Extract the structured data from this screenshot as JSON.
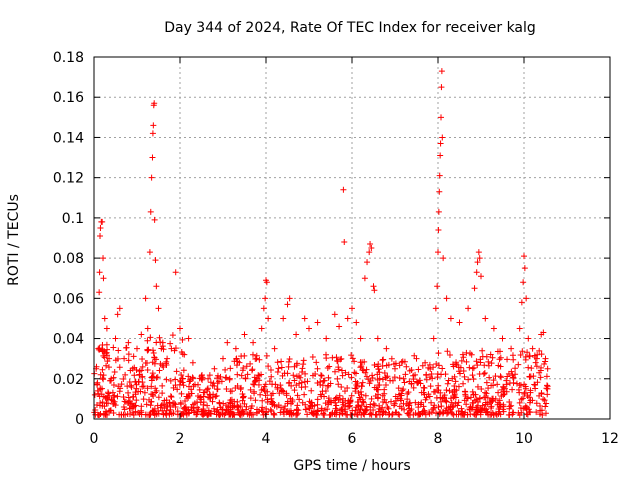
{
  "chart_data": {
    "type": "scatter",
    "title": "Day 344 of 2024, Rate Of TEC Index for receiver kalg",
    "xlabel": "GPS time / hours",
    "ylabel": "ROTI / TECUs",
    "xlim": [
      0,
      12
    ],
    "ylim": [
      0,
      0.18
    ],
    "x_ticks": [
      0,
      2,
      4,
      6,
      8,
      10,
      12
    ],
    "y_ticks": [
      0,
      0.02,
      0.04,
      0.06,
      0.08,
      0.1,
      0.12,
      0.14,
      0.16,
      0.18
    ],
    "x_tick_labels": [
      "0",
      "2",
      "4",
      "6",
      "8",
      "10",
      "12"
    ],
    "y_tick_labels": [
      "0",
      "0.02",
      "0.04",
      "0.06",
      "0.08",
      "0.1",
      "0.12",
      "0.14",
      "0.16",
      "0.18"
    ],
    "grid": true,
    "marker": "+",
    "marker_color": "#ff0000",
    "series": [
      {
        "name": "ROTI",
        "points": [
          [
            0.02,
            0.012
          ],
          [
            0.05,
            0.025
          ],
          [
            0.08,
            0.018
          ],
          [
            0.1,
            0.035
          ],
          [
            0.12,
            0.063
          ],
          [
            0.13,
            0.073
          ],
          [
            0.14,
            0.091
          ],
          [
            0.15,
            0.095
          ],
          [
            0.17,
            0.098
          ],
          [
            0.19,
            0.098
          ],
          [
            0.21,
            0.08
          ],
          [
            0.22,
            0.07
          ],
          [
            0.25,
            0.05
          ],
          [
            0.3,
            0.045
          ],
          [
            0.35,
            0.03
          ],
          [
            0.4,
            0.02
          ],
          [
            0.5,
            0.04
          ],
          [
            0.55,
            0.052
          ],
          [
            0.6,
            0.055
          ],
          [
            0.7,
            0.03
          ],
          [
            0.8,
            0.038
          ],
          [
            0.9,
            0.025
          ],
          [
            1.0,
            0.035
          ],
          [
            1.1,
            0.042
          ],
          [
            1.2,
            0.06
          ],
          [
            1.25,
            0.045
          ],
          [
            1.3,
            0.083
          ],
          [
            1.32,
            0.103
          ],
          [
            1.34,
            0.12
          ],
          [
            1.36,
            0.13
          ],
          [
            1.37,
            0.142
          ],
          [
            1.38,
            0.146
          ],
          [
            1.39,
            0.156
          ],
          [
            1.4,
            0.157
          ],
          [
            1.41,
            0.099
          ],
          [
            1.43,
            0.079
          ],
          [
            1.45,
            0.066
          ],
          [
            1.5,
            0.055
          ],
          [
            1.6,
            0.038
          ],
          [
            1.7,
            0.03
          ],
          [
            1.8,
            0.035
          ],
          [
            1.9,
            0.073
          ],
          [
            2.0,
            0.045
          ],
          [
            2.1,
            0.032
          ],
          [
            2.2,
            0.04
          ],
          [
            2.3,
            0.028
          ],
          [
            2.5,
            0.02
          ],
          [
            2.7,
            0.012
          ],
          [
            2.8,
            0.025
          ],
          [
            3.0,
            0.03
          ],
          [
            3.1,
            0.038
          ],
          [
            3.3,
            0.035
          ],
          [
            3.5,
            0.042
          ],
          [
            3.7,
            0.038
          ],
          [
            3.9,
            0.045
          ],
          [
            3.95,
            0.055
          ],
          [
            3.98,
            0.06
          ],
          [
            4.0,
            0.069
          ],
          [
            4.02,
            0.068
          ],
          [
            4.05,
            0.05
          ],
          [
            4.2,
            0.035
          ],
          [
            4.4,
            0.05
          ],
          [
            4.5,
            0.057
          ],
          [
            4.55,
            0.06
          ],
          [
            4.7,
            0.042
          ],
          [
            4.9,
            0.05
          ],
          [
            5.0,
            0.045
          ],
          [
            5.2,
            0.048
          ],
          [
            5.4,
            0.04
          ],
          [
            5.6,
            0.052
          ],
          [
            5.7,
            0.046
          ],
          [
            5.8,
            0.114
          ],
          [
            5.82,
            0.088
          ],
          [
            5.9,
            0.05
          ],
          [
            6.0,
            0.055
          ],
          [
            6.1,
            0.048
          ],
          [
            6.2,
            0.04
          ],
          [
            6.3,
            0.07
          ],
          [
            6.35,
            0.078
          ],
          [
            6.4,
            0.083
          ],
          [
            6.42,
            0.087
          ],
          [
            6.45,
            0.085
          ],
          [
            6.5,
            0.066
          ],
          [
            6.52,
            0.064
          ],
          [
            6.6,
            0.04
          ],
          [
            6.8,
            0.035
          ],
          [
            7.0,
            0.025
          ],
          [
            7.2,
            0.02
          ],
          [
            7.5,
            0.03
          ],
          [
            7.7,
            0.028
          ],
          [
            7.9,
            0.04
          ],
          [
            7.95,
            0.055
          ],
          [
            7.98,
            0.066
          ],
          [
            8.0,
            0.083
          ],
          [
            8.01,
            0.094
          ],
          [
            8.02,
            0.103
          ],
          [
            8.03,
            0.113
          ],
          [
            8.04,
            0.121
          ],
          [
            8.05,
            0.131
          ],
          [
            8.06,
            0.137
          ],
          [
            8.07,
            0.15
          ],
          [
            8.08,
            0.165
          ],
          [
            8.09,
            0.173
          ],
          [
            8.1,
            0.14
          ],
          [
            8.12,
            0.08
          ],
          [
            8.2,
            0.06
          ],
          [
            8.3,
            0.05
          ],
          [
            8.5,
            0.048
          ],
          [
            8.7,
            0.055
          ],
          [
            8.85,
            0.065
          ],
          [
            8.9,
            0.073
          ],
          [
            8.92,
            0.078
          ],
          [
            8.95,
            0.083
          ],
          [
            8.97,
            0.08
          ],
          [
            9.0,
            0.071
          ],
          [
            9.1,
            0.05
          ],
          [
            9.3,
            0.045
          ],
          [
            9.5,
            0.04
          ],
          [
            9.7,
            0.035
          ],
          [
            9.9,
            0.045
          ],
          [
            9.95,
            0.058
          ],
          [
            9.98,
            0.068
          ],
          [
            10.0,
            0.081
          ],
          [
            10.02,
            0.075
          ],
          [
            10.05,
            0.06
          ],
          [
            10.1,
            0.04
          ],
          [
            10.2,
            0.035
          ],
          [
            10.3,
            0.03
          ],
          [
            10.4,
            0.042
          ],
          [
            10.45,
            0.043
          ],
          [
            10.5,
            0.03
          ],
          [
            10.55,
            0.025
          ]
        ]
      }
    ]
  }
}
